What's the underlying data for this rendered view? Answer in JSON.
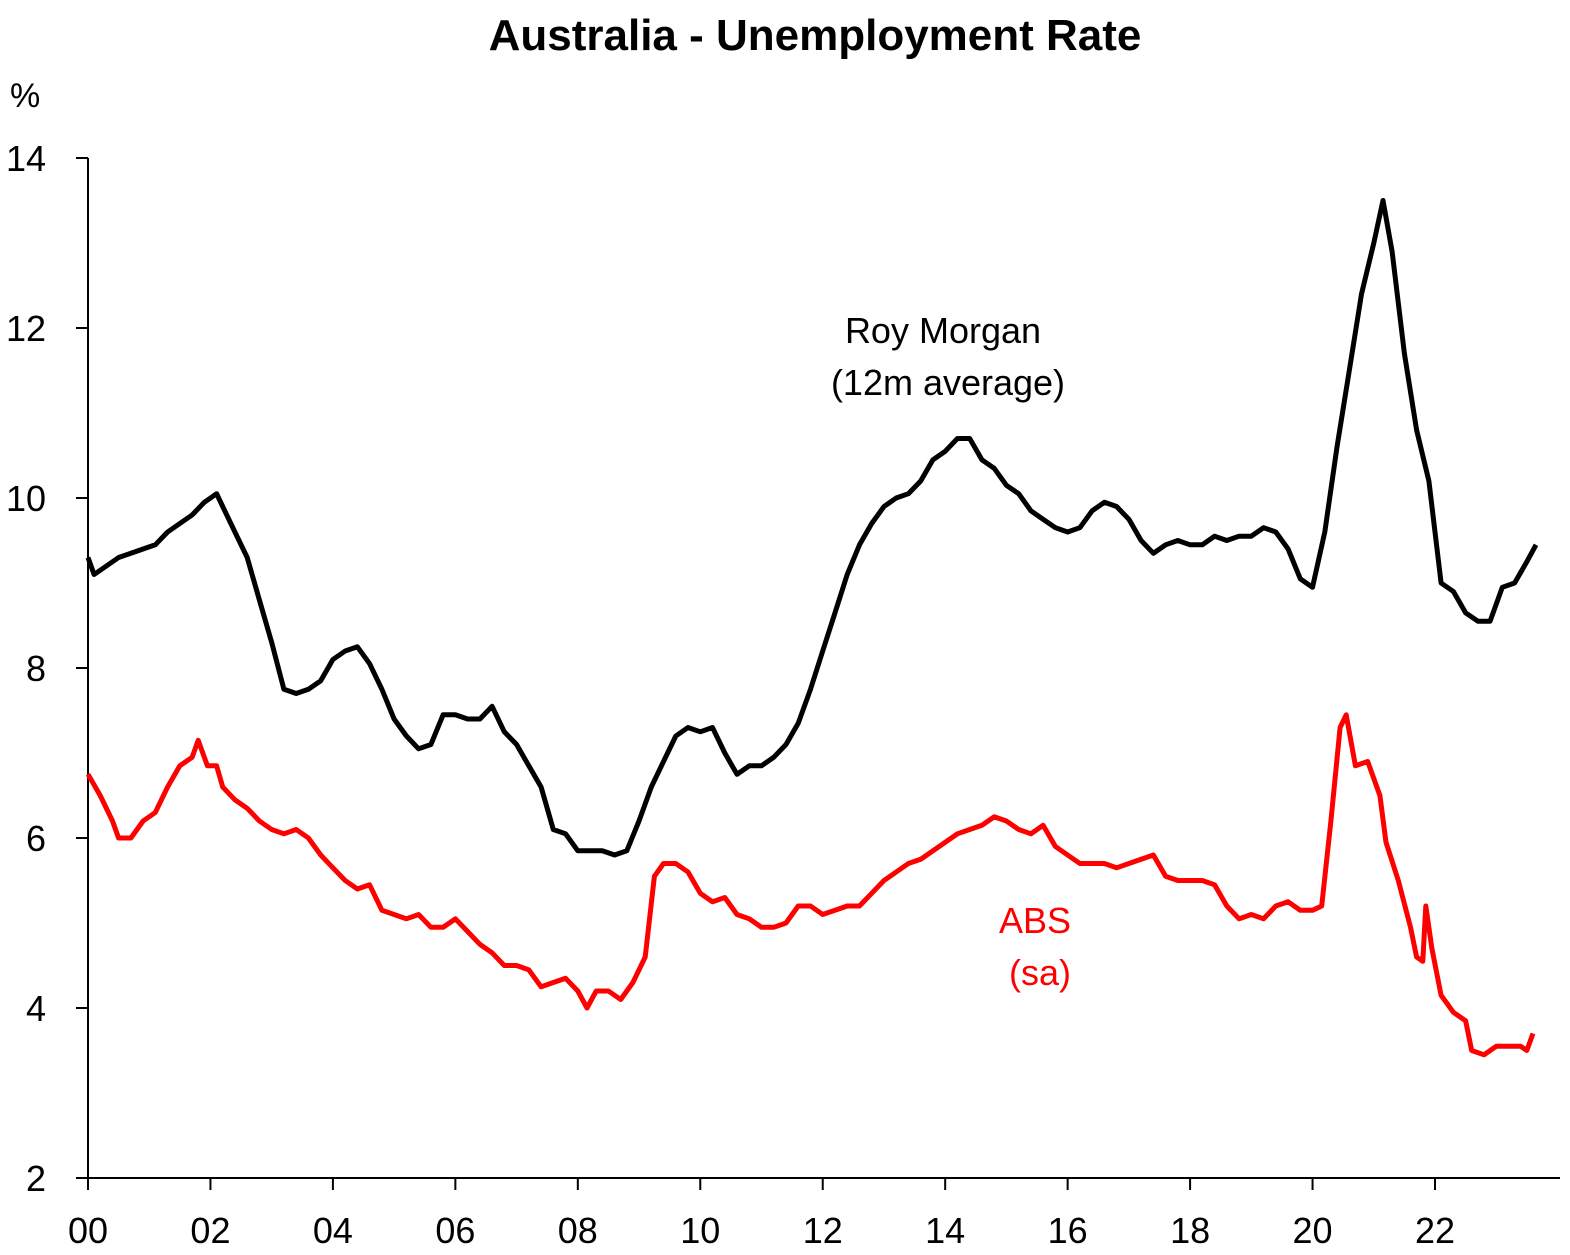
{
  "chart_data": {
    "type": "line",
    "title": "Australia - Unemployment Rate",
    "ylabel": "%",
    "xlabel": "",
    "xlim": [
      2000.0,
      2023.75
    ],
    "ylim": [
      2,
      14
    ],
    "y_ticks": [
      2,
      4,
      6,
      8,
      10,
      12,
      14
    ],
    "x_ticks": [
      {
        "value": 2000,
        "label": "00"
      },
      {
        "value": 2002,
        "label": "02"
      },
      {
        "value": 2004,
        "label": "04"
      },
      {
        "value": 2006,
        "label": "06"
      },
      {
        "value": 2008,
        "label": "08"
      },
      {
        "value": 2010,
        "label": "10"
      },
      {
        "value": 2012,
        "label": "12"
      },
      {
        "value": 2014,
        "label": "14"
      },
      {
        "value": 2016,
        "label": "16"
      },
      {
        "value": 2018,
        "label": "18"
      },
      {
        "value": 2020,
        "label": "20"
      },
      {
        "value": 2022,
        "label": "22"
      }
    ],
    "grid": false,
    "legend": "none",
    "series": [
      {
        "name": "Roy Morgan (12m average)",
        "label_lines": [
          "Roy Morgan",
          "(12m average)"
        ],
        "color": "#000000",
        "points": [
          [
            2000.0,
            9.3
          ],
          [
            2000.1,
            9.1
          ],
          [
            2000.3,
            9.2
          ],
          [
            2000.5,
            9.3
          ],
          [
            2000.7,
            9.35
          ],
          [
            2000.9,
            9.4
          ],
          [
            2001.1,
            9.45
          ],
          [
            2001.3,
            9.6
          ],
          [
            2001.5,
            9.7
          ],
          [
            2001.7,
            9.8
          ],
          [
            2001.9,
            9.95
          ],
          [
            2002.0,
            10.0
          ],
          [
            2002.1,
            10.05
          ],
          [
            2002.2,
            9.9
          ],
          [
            2002.4,
            9.6
          ],
          [
            2002.6,
            9.3
          ],
          [
            2002.8,
            8.8
          ],
          [
            2003.0,
            8.3
          ],
          [
            2003.2,
            7.75
          ],
          [
            2003.4,
            7.7
          ],
          [
            2003.6,
            7.75
          ],
          [
            2003.8,
            7.85
          ],
          [
            2004.0,
            8.1
          ],
          [
            2004.2,
            8.2
          ],
          [
            2004.4,
            8.25
          ],
          [
            2004.6,
            8.05
          ],
          [
            2004.8,
            7.75
          ],
          [
            2005.0,
            7.4
          ],
          [
            2005.2,
            7.2
          ],
          [
            2005.4,
            7.05
          ],
          [
            2005.6,
            7.1
          ],
          [
            2005.8,
            7.45
          ],
          [
            2006.0,
            7.45
          ],
          [
            2006.2,
            7.4
          ],
          [
            2006.4,
            7.4
          ],
          [
            2006.6,
            7.55
          ],
          [
            2006.8,
            7.25
          ],
          [
            2007.0,
            7.1
          ],
          [
            2007.2,
            6.85
          ],
          [
            2007.4,
            6.6
          ],
          [
            2007.6,
            6.1
          ],
          [
            2007.8,
            6.05
          ],
          [
            2008.0,
            5.85
          ],
          [
            2008.2,
            5.85
          ],
          [
            2008.4,
            5.85
          ],
          [
            2008.6,
            5.8
          ],
          [
            2008.8,
            5.85
          ],
          [
            2009.0,
            6.2
          ],
          [
            2009.2,
            6.6
          ],
          [
            2009.4,
            6.9
          ],
          [
            2009.6,
            7.2
          ],
          [
            2009.8,
            7.3
          ],
          [
            2010.0,
            7.25
          ],
          [
            2010.2,
            7.3
          ],
          [
            2010.4,
            7.0
          ],
          [
            2010.6,
            6.75
          ],
          [
            2010.8,
            6.85
          ],
          [
            2011.0,
            6.85
          ],
          [
            2011.2,
            6.95
          ],
          [
            2011.4,
            7.1
          ],
          [
            2011.6,
            7.35
          ],
          [
            2011.8,
            7.75
          ],
          [
            2012.0,
            8.2
          ],
          [
            2012.2,
            8.65
          ],
          [
            2012.4,
            9.1
          ],
          [
            2012.6,
            9.45
          ],
          [
            2012.8,
            9.7
          ],
          [
            2013.0,
            9.9
          ],
          [
            2013.2,
            10.0
          ],
          [
            2013.4,
            10.05
          ],
          [
            2013.6,
            10.2
          ],
          [
            2013.8,
            10.45
          ],
          [
            2014.0,
            10.55
          ],
          [
            2014.2,
            10.7
          ],
          [
            2014.4,
            10.7
          ],
          [
            2014.6,
            10.45
          ],
          [
            2014.8,
            10.35
          ],
          [
            2015.0,
            10.15
          ],
          [
            2015.2,
            10.05
          ],
          [
            2015.4,
            9.85
          ],
          [
            2015.6,
            9.75
          ],
          [
            2015.8,
            9.65
          ],
          [
            2016.0,
            9.6
          ],
          [
            2016.2,
            9.65
          ],
          [
            2016.4,
            9.85
          ],
          [
            2016.6,
            9.95
          ],
          [
            2016.8,
            9.9
          ],
          [
            2017.0,
            9.75
          ],
          [
            2017.2,
            9.5
          ],
          [
            2017.4,
            9.35
          ],
          [
            2017.6,
            9.45
          ],
          [
            2017.8,
            9.5
          ],
          [
            2018.0,
            9.45
          ],
          [
            2018.2,
            9.45
          ],
          [
            2018.4,
            9.55
          ],
          [
            2018.6,
            9.5
          ],
          [
            2018.8,
            9.55
          ],
          [
            2019.0,
            9.55
          ],
          [
            2019.2,
            9.65
          ],
          [
            2019.4,
            9.6
          ],
          [
            2019.6,
            9.4
          ],
          [
            2019.8,
            9.05
          ],
          [
            2020.0,
            8.95
          ],
          [
            2020.2,
            9.6
          ],
          [
            2020.4,
            10.6
          ],
          [
            2020.6,
            11.5
          ],
          [
            2020.8,
            12.4
          ],
          [
            2021.0,
            13.0
          ],
          [
            2021.15,
            13.5
          ],
          [
            2021.3,
            12.9
          ],
          [
            2021.5,
            11.7
          ],
          [
            2021.7,
            10.8
          ],
          [
            2021.9,
            10.2
          ],
          [
            2022.1,
            9.0
          ],
          [
            2022.3,
            8.9
          ],
          [
            2022.5,
            8.65
          ],
          [
            2022.7,
            8.55
          ],
          [
            2022.9,
            8.55
          ],
          [
            2023.1,
            8.95
          ],
          [
            2023.3,
            9.0
          ],
          [
            2023.5,
            9.25
          ],
          [
            2023.65,
            9.45
          ]
        ]
      },
      {
        "name": "ABS (sa)",
        "label_lines": [
          "ABS",
          "(sa)"
        ],
        "color": "#ff0000",
        "points": [
          [
            2000.0,
            6.75
          ],
          [
            2000.2,
            6.5
          ],
          [
            2000.4,
            6.2
          ],
          [
            2000.5,
            6.0
          ],
          [
            2000.7,
            6.0
          ],
          [
            2000.9,
            6.2
          ],
          [
            2001.1,
            6.3
          ],
          [
            2001.3,
            6.6
          ],
          [
            2001.5,
            6.85
          ],
          [
            2001.7,
            6.95
          ],
          [
            2001.8,
            7.15
          ],
          [
            2001.95,
            6.85
          ],
          [
            2002.1,
            6.85
          ],
          [
            2002.2,
            6.6
          ],
          [
            2002.4,
            6.45
          ],
          [
            2002.6,
            6.35
          ],
          [
            2002.8,
            6.2
          ],
          [
            2003.0,
            6.1
          ],
          [
            2003.2,
            6.05
          ],
          [
            2003.4,
            6.1
          ],
          [
            2003.6,
            6.0
          ],
          [
            2003.8,
            5.8
          ],
          [
            2004.0,
            5.65
          ],
          [
            2004.2,
            5.5
          ],
          [
            2004.4,
            5.4
          ],
          [
            2004.6,
            5.45
          ],
          [
            2004.8,
            5.15
          ],
          [
            2005.0,
            5.1
          ],
          [
            2005.2,
            5.05
          ],
          [
            2005.4,
            5.1
          ],
          [
            2005.6,
            4.95
          ],
          [
            2005.8,
            4.95
          ],
          [
            2006.0,
            5.05
          ],
          [
            2006.2,
            4.9
          ],
          [
            2006.4,
            4.75
          ],
          [
            2006.6,
            4.65
          ],
          [
            2006.8,
            4.5
          ],
          [
            2007.0,
            4.5
          ],
          [
            2007.2,
            4.45
          ],
          [
            2007.4,
            4.25
          ],
          [
            2007.6,
            4.3
          ],
          [
            2007.8,
            4.35
          ],
          [
            2008.0,
            4.2
          ],
          [
            2008.15,
            4.0
          ],
          [
            2008.3,
            4.2
          ],
          [
            2008.5,
            4.2
          ],
          [
            2008.7,
            4.1
          ],
          [
            2008.9,
            4.3
          ],
          [
            2009.1,
            4.6
          ],
          [
            2009.25,
            5.55
          ],
          [
            2009.4,
            5.7
          ],
          [
            2009.6,
            5.7
          ],
          [
            2009.8,
            5.6
          ],
          [
            2010.0,
            5.35
          ],
          [
            2010.2,
            5.25
          ],
          [
            2010.4,
            5.3
          ],
          [
            2010.6,
            5.1
          ],
          [
            2010.8,
            5.05
          ],
          [
            2011.0,
            4.95
          ],
          [
            2011.2,
            4.95
          ],
          [
            2011.4,
            5.0
          ],
          [
            2011.6,
            5.2
          ],
          [
            2011.8,
            5.2
          ],
          [
            2012.0,
            5.1
          ],
          [
            2012.2,
            5.15
          ],
          [
            2012.4,
            5.2
          ],
          [
            2012.6,
            5.2
          ],
          [
            2012.8,
            5.35
          ],
          [
            2013.0,
            5.5
          ],
          [
            2013.2,
            5.6
          ],
          [
            2013.4,
            5.7
          ],
          [
            2013.6,
            5.75
          ],
          [
            2013.8,
            5.85
          ],
          [
            2014.0,
            5.95
          ],
          [
            2014.2,
            6.05
          ],
          [
            2014.4,
            6.1
          ],
          [
            2014.6,
            6.15
          ],
          [
            2014.8,
            6.25
          ],
          [
            2015.0,
            6.2
          ],
          [
            2015.2,
            6.1
          ],
          [
            2015.4,
            6.05
          ],
          [
            2015.6,
            6.15
          ],
          [
            2015.8,
            5.9
          ],
          [
            2016.0,
            5.8
          ],
          [
            2016.2,
            5.7
          ],
          [
            2016.4,
            5.7
          ],
          [
            2016.6,
            5.7
          ],
          [
            2016.8,
            5.65
          ],
          [
            2017.0,
            5.7
          ],
          [
            2017.2,
            5.75
          ],
          [
            2017.4,
            5.8
          ],
          [
            2017.6,
            5.55
          ],
          [
            2017.8,
            5.5
          ],
          [
            2018.0,
            5.5
          ],
          [
            2018.2,
            5.5
          ],
          [
            2018.4,
            5.45
          ],
          [
            2018.6,
            5.2
          ],
          [
            2018.8,
            5.05
          ],
          [
            2019.0,
            5.1
          ],
          [
            2019.2,
            5.05
          ],
          [
            2019.4,
            5.2
          ],
          [
            2019.6,
            5.25
          ],
          [
            2019.8,
            5.15
          ],
          [
            2020.0,
            5.15
          ],
          [
            2020.15,
            5.2
          ],
          [
            2020.3,
            6.2
          ],
          [
            2020.45,
            7.3
          ],
          [
            2020.55,
            7.45
          ],
          [
            2020.7,
            6.85
          ],
          [
            2020.9,
            6.9
          ],
          [
            2021.1,
            6.5
          ],
          [
            2021.2,
            5.95
          ],
          [
            2021.4,
            5.5
          ],
          [
            2021.6,
            4.95
          ],
          [
            2021.7,
            4.6
          ],
          [
            2021.8,
            4.55
          ],
          [
            2021.85,
            5.2
          ],
          [
            2021.95,
            4.7
          ],
          [
            2022.1,
            4.15
          ],
          [
            2022.3,
            3.95
          ],
          [
            2022.5,
            3.85
          ],
          [
            2022.6,
            3.5
          ],
          [
            2022.8,
            3.45
          ],
          [
            2023.0,
            3.55
          ],
          [
            2023.2,
            3.55
          ],
          [
            2023.4,
            3.55
          ],
          [
            2023.5,
            3.5
          ],
          [
            2023.6,
            3.7
          ]
        ]
      }
    ]
  }
}
